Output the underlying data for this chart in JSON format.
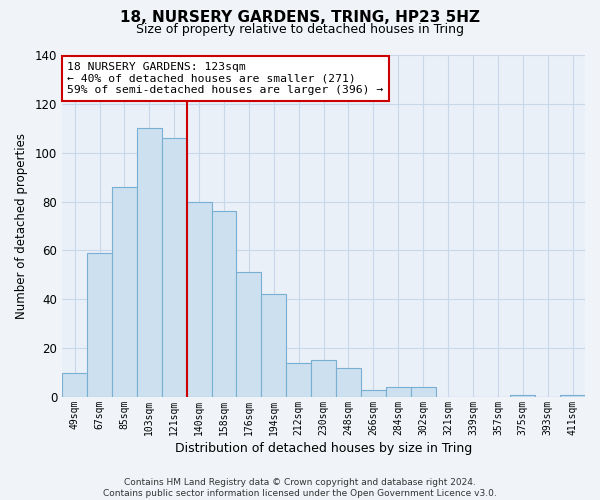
{
  "title": "18, NURSERY GARDENS, TRING, HP23 5HZ",
  "subtitle": "Size of property relative to detached houses in Tring",
  "xlabel": "Distribution of detached houses by size in Tring",
  "ylabel": "Number of detached properties",
  "bar_color": "#cce0f0",
  "bar_edge_color": "#7aafd4",
  "categories": [
    "49sqm",
    "67sqm",
    "85sqm",
    "103sqm",
    "121sqm",
    "140sqm",
    "158sqm",
    "176sqm",
    "194sqm",
    "212sqm",
    "230sqm",
    "248sqm",
    "266sqm",
    "284sqm",
    "302sqm",
    "321sqm",
    "339sqm",
    "357sqm",
    "375sqm",
    "393sqm",
    "411sqm"
  ],
  "values": [
    10,
    59,
    86,
    110,
    106,
    80,
    76,
    51,
    42,
    14,
    15,
    12,
    3,
    4,
    4,
    0,
    0,
    0,
    1,
    0,
    1
  ],
  "ylim": [
    0,
    140
  ],
  "yticks": [
    0,
    20,
    40,
    60,
    80,
    100,
    120,
    140
  ],
  "vline_color": "#cc0000",
  "vline_index": 4,
  "annotation_text": "18 NURSERY GARDENS: 123sqm\n← 40% of detached houses are smaller (271)\n59% of semi-detached houses are larger (396) →",
  "annotation_box_color": "#ffffff",
  "annotation_box_edge": "#cc0000",
  "footer_line1": "Contains HM Land Registry data © Crown copyright and database right 2024.",
  "footer_line2": "Contains public sector information licensed under the Open Government Licence v3.0.",
  "background_color": "#f0f4f8",
  "plot_bg_color": "#eaf0f8",
  "grid_color": "#c8d8e8"
}
